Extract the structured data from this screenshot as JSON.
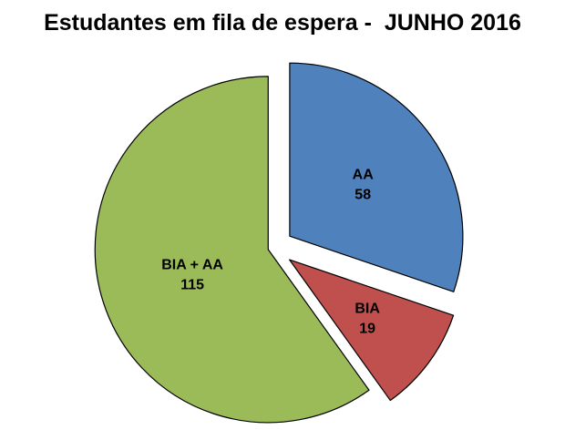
{
  "chart_data": {
    "type": "pie",
    "title": "Estudantes em fila de espera -  JUNHO 2016",
    "slices": [
      {
        "label": "AA",
        "value": 58,
        "color": "#4F81BD",
        "explode": 22,
        "label_r": 0.52
      },
      {
        "label": "BIA",
        "value": 19,
        "color": "#C0504D",
        "explode": 22,
        "label_r": 0.56
      },
      {
        "label": "BIA + AA",
        "value": 115,
        "color": "#9BBB59",
        "explode": 6,
        "label_r": 0.46
      }
    ],
    "start_angle_deg": 0,
    "direction": "clockwise",
    "outline_color": "#000000",
    "background": "#FFFFFF",
    "legend": "none",
    "data_labels": "category_and_value"
  }
}
